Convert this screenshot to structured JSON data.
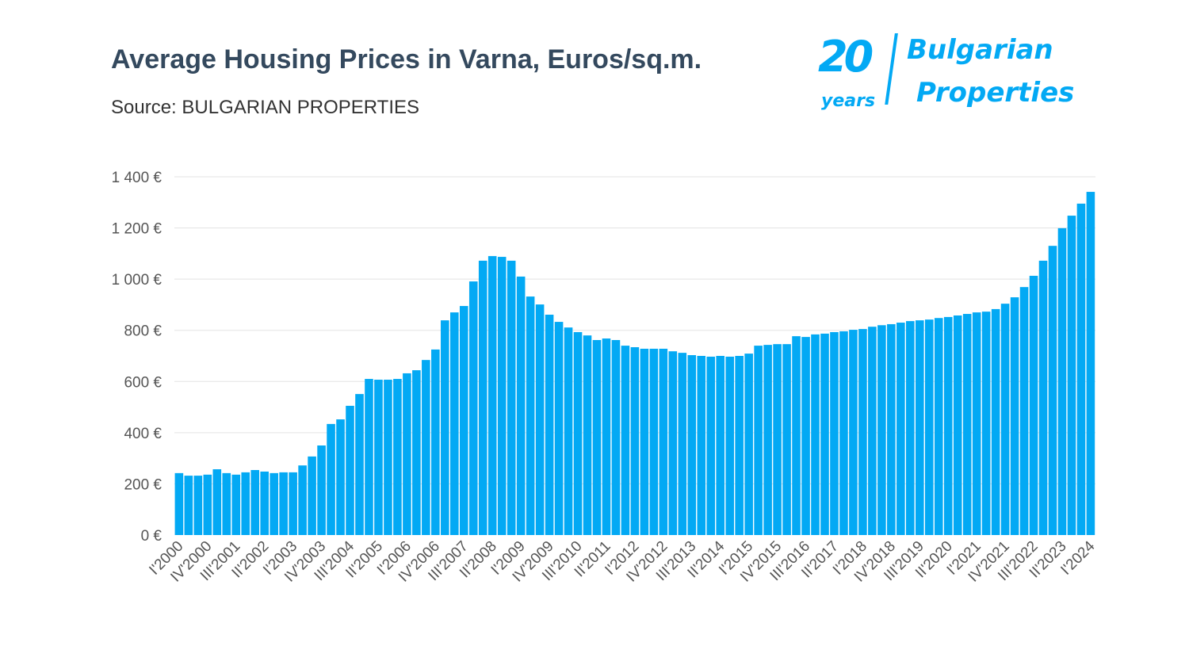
{
  "chart_data": {
    "type": "bar",
    "title": "Average Housing Prices in Varna, Euros/sq.m.",
    "subtitle": "Source: BULGARIAN PROPERTIES",
    "frequency": "quarterly",
    "x_start": "I'2000",
    "x_end": "I'2024",
    "x_tick_labels": [
      "I'2000",
      "IV'2000",
      "III'2001",
      "II'2002",
      "I'2003",
      "IV'2003",
      "III'2004",
      "II'2005",
      "I'2006",
      "IV'2006",
      "III'2007",
      "II'2008",
      "I'2009",
      "IV'2009",
      "III'2010",
      "II'2011",
      "I'2012",
      "IV'2012",
      "III'2013",
      "II'2014",
      "I'2015",
      "IV'2015",
      "III'2016",
      "II'2017",
      "I'2018",
      "IV'2018",
      "III'2019",
      "II'2020",
      "I'2021",
      "IV'2021",
      "III'2022",
      "II'2023",
      "I'2024"
    ],
    "values": [
      242,
      232,
      232,
      236,
      257,
      242,
      236,
      245,
      254,
      248,
      242,
      245,
      245,
      272,
      307,
      350,
      434,
      452,
      505,
      551,
      610,
      607,
      607,
      610,
      632,
      644,
      684,
      725,
      839,
      870,
      895,
      991,
      1072,
      1090,
      1087,
      1072,
      1010,
      932,
      901,
      861,
      833,
      811,
      793,
      780,
      762,
      768,
      762,
      740,
      734,
      728,
      728,
      728,
      718,
      712,
      703,
      700,
      697,
      700,
      697,
      700,
      709,
      740,
      743,
      746,
      746,
      777,
      774,
      784,
      787,
      793,
      796,
      802,
      805,
      814,
      820,
      824,
      830,
      836,
      839,
      842,
      848,
      852,
      858,
      864,
      870,
      873,
      883,
      904,
      929,
      969,
      1013,
      1072,
      1130,
      1199,
      1248,
      1295,
      1341
    ],
    "y_ticks": [
      0,
      200,
      400,
      600,
      800,
      1000,
      1200,
      1400
    ],
    "y_tick_labels": [
      "0 €",
      "200 €",
      "400 €",
      "600 €",
      "800 €",
      "1 000 €",
      "1 200 €",
      "1 400 €"
    ],
    "ylim": [
      0,
      1400
    ],
    "xlabel": "",
    "ylabel": "",
    "grid": true,
    "legend": "none",
    "bar_color": "#03a9f4"
  },
  "logo": {
    "text_number": "20",
    "text_years": "years",
    "text_line1": "Bulgarian",
    "text_line2": "Properties",
    "color": "#03a9f4"
  }
}
